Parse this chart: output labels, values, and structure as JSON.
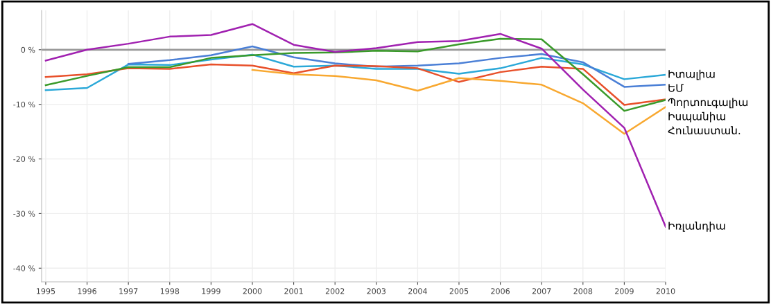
{
  "chart_data": {
    "type": "line",
    "x": [
      1995,
      1996,
      1997,
      1998,
      1999,
      2000,
      2001,
      2002,
      2003,
      2004,
      2005,
      2006,
      2007,
      2008,
      2009,
      2010
    ],
    "series": [
      {
        "name": "Իտալիա",
        "color": "#2aa8d8",
        "values": [
          -7.4,
          -7.0,
          -2.7,
          -2.8,
          -1.8,
          -0.9,
          -3.1,
          -2.9,
          -3.5,
          -3.5,
          -4.4,
          -3.4,
          -1.5,
          -2.7,
          -5.4,
          -4.6
        ]
      },
      {
        "name": "ԵՄ",
        "color": "#4a7fd6",
        "values": [
          null,
          null,
          -2.6,
          -1.9,
          -1.0,
          0.6,
          -1.4,
          -2.5,
          -3.1,
          -2.9,
          -2.5,
          -1.5,
          -0.8,
          -2.3,
          -6.8,
          -6.4
        ]
      },
      {
        "name": "Պորտուգալիա",
        "color": "#e8502a",
        "values": [
          -5.0,
          -4.5,
          -3.4,
          -3.5,
          -2.7,
          -2.9,
          -4.3,
          -2.9,
          -3.0,
          -3.4,
          -5.9,
          -4.1,
          -3.1,
          -3.5,
          -10.1,
          -9.1
        ]
      },
      {
        "name": "Իսպանիա",
        "color": "#3a9a2a",
        "values": [
          -6.5,
          -4.8,
          -3.2,
          -3.2,
          -1.5,
          -1.0,
          -0.6,
          -0.5,
          -0.2,
          -0.3,
          1.0,
          2.0,
          1.9,
          -4.5,
          -11.2,
          -9.2
        ]
      },
      {
        "name": "Հունաստան.",
        "color": "#f8a830",
        "values": [
          null,
          null,
          null,
          null,
          null,
          -3.7,
          -4.5,
          -4.8,
          -5.6,
          -7.5,
          -5.2,
          -5.7,
          -6.4,
          -9.8,
          -15.4,
          -10.5
        ]
      },
      {
        "name": "Իռլանդիա",
        "color": "#a020b0",
        "values": [
          -2.0,
          0.0,
          1.1,
          2.4,
          2.7,
          4.7,
          0.9,
          -0.4,
          0.3,
          1.4,
          1.6,
          2.9,
          0.2,
          -7.3,
          -14.3,
          -32.4
        ]
      }
    ],
    "xlim": [
      1994.9,
      2010
    ],
    "xticks": [
      1995,
      1996,
      1997,
      1998,
      1999,
      2000,
      2001,
      2002,
      2003,
      2004,
      2005,
      2006,
      2007,
      2008,
      2009,
      2010
    ],
    "ylim": [
      -42.5,
      7.2
    ],
    "yticks": [
      {
        "value": 0,
        "label": "0 %"
      },
      {
        "value": -10,
        "label": "-10 %"
      },
      {
        "value": -20,
        "label": "-20 %"
      },
      {
        "value": -30,
        "label": "-30 %"
      },
      {
        "value": -40,
        "label": "-40 %"
      }
    ],
    "ref_lines": [
      {
        "axis": "y",
        "value": 0,
        "color": "#999999"
      }
    ],
    "grid": true,
    "legend": false
  }
}
